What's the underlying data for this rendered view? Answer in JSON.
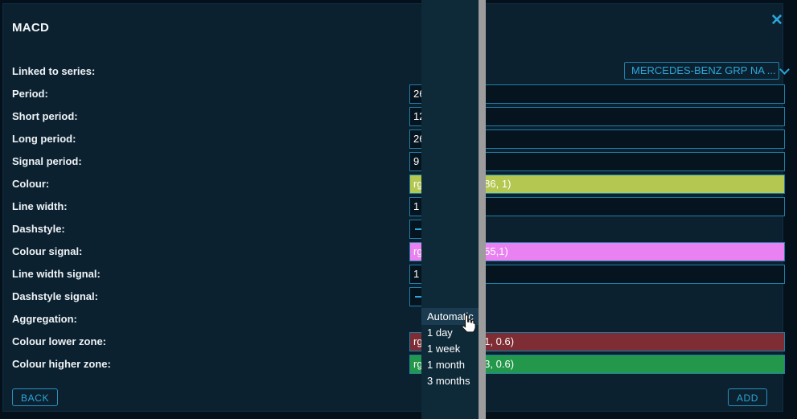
{
  "dialog": {
    "title": "MACD",
    "close_glyph": "✕",
    "accent_color": "#2aa6da",
    "background_color": "#0c2130"
  },
  "form": {
    "rows": [
      {
        "label": "Linked to series:",
        "control": "series-select",
        "value": "MERCEDES-BENZ GRP NA ..."
      },
      {
        "label": "Period:",
        "control": "input",
        "value": "26"
      },
      {
        "label": "Short period:",
        "control": "input",
        "value": "12"
      },
      {
        "label": "Long period:",
        "control": "input",
        "value": "26"
      },
      {
        "label": "Signal period:",
        "control": "input",
        "value": "9"
      },
      {
        "label": "Colour:",
        "control": "color",
        "value": "rgba(180, 199, 86, 1)",
        "swatch": "#b4c750"
      },
      {
        "label": "Line width:",
        "control": "input",
        "value": "1"
      },
      {
        "label": "Dashstyle:",
        "control": "dash",
        "icon": "solid-line-icon"
      },
      {
        "label": "Colour signal:",
        "control": "color",
        "value": "rgba(233,129,255,1)",
        "swatch": "#e981f2"
      },
      {
        "label": "Line width signal:",
        "control": "input",
        "value": "1"
      },
      {
        "label": "Dashstyle signal:",
        "control": "dash",
        "icon": "solid-line-icon"
      },
      {
        "label": "Aggregation:",
        "control": "none"
      },
      {
        "label": "Colour lower zone:",
        "control": "color",
        "value": "rgba(204, 51, 51, 0.6)",
        "swatch": "#7e2d34"
      },
      {
        "label": "Colour higher zone:",
        "control": "color",
        "value": "rgba(51, 204, 83, 0.6)",
        "swatch": "#23984a"
      }
    ]
  },
  "aggregation_dropdown": {
    "options": [
      "Automatic",
      "1 day",
      "1 week",
      "1 month",
      "3 months"
    ],
    "highlighted": "Automatic",
    "scrollbar_color": "#9c9c9c"
  },
  "buttons": {
    "back": "BACK",
    "add": "ADD"
  }
}
